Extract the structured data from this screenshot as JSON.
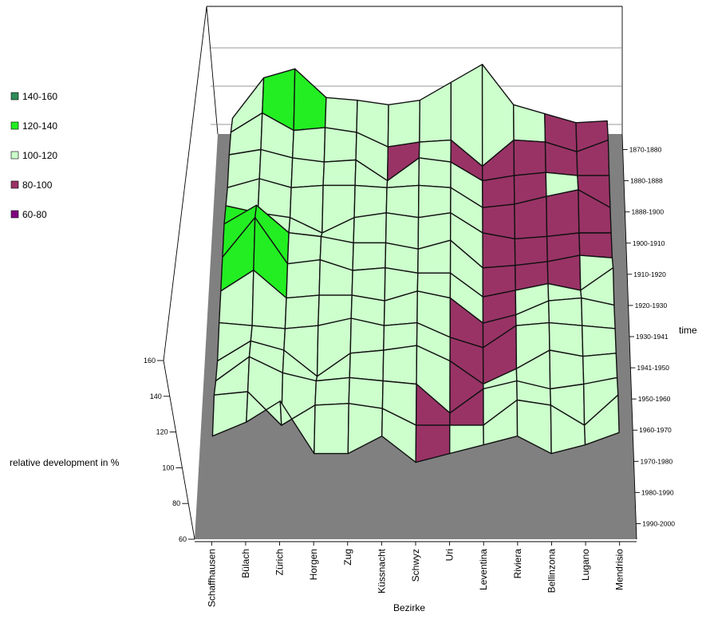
{
  "chart_data": {
    "type": "surface",
    "zlabel": "relative development in %",
    "xlabel": "Bezirke",
    "ylabel": "time",
    "zlim": [
      60,
      160
    ],
    "z_ticks": [
      "60",
      "80",
      "100",
      "120",
      "140",
      "160"
    ],
    "legend": {
      "position": "top-left",
      "entries": [
        {
          "label": "140-160",
          "color": "#2e8b57"
        },
        {
          "label": "120-140",
          "color": "#22ee22"
        },
        {
          "label": "100-120",
          "color": "#ccffcc"
        },
        {
          "label": "80-100",
          "color": "#993366"
        },
        {
          "label": "60-80",
          "color": "#800080"
        }
      ]
    },
    "districts": [
      "Schaffhausen",
      "Bülach",
      "Zürich",
      "Horgen",
      "Zug",
      "Küssnacht",
      "Schwyz",
      "Uri",
      "Leventina",
      "Riviera",
      "Bellinzona",
      "Lugano",
      "Mendrisio"
    ],
    "periods": [
      "1990-2000",
      "1980-1990",
      "1970-1980",
      "1960-1970",
      "1950-1960",
      "1941-1950",
      "1930-1941",
      "1920-1930",
      "1910-1920",
      "1900-1910",
      "1888-1900",
      "1880-1888",
      "1870-1880"
    ],
    "values": [
      [
        110,
        118,
        130,
        100,
        100,
        110,
        95,
        100,
        105,
        110,
        100,
        105,
        112
      ],
      [
        118,
        120,
        100,
        112,
        113,
        110,
        100,
        100,
        100,
        115,
        112,
        100,
        118
      ],
      [
        110,
        125,
        115,
        110,
        112,
        110,
        108,
        90,
        105,
        110,
        105,
        108,
        112
      ],
      [
        105,
        118,
        112,
        95,
        110,
        112,
        115,
        105,
        90,
        100,
        112,
        108,
        110
      ],
      [
        112,
        110,
        108,
        110,
        115,
        110,
        112,
        102,
        95,
        110,
        112,
        110,
        108
      ],
      [
        115,
        130,
        110,
        112,
        112,
        108,
        115,
        110,
        92,
        98,
        108,
        110,
        105
      ],
      [
        120,
        150,
        115,
        118,
        110,
        112,
        108,
        108,
        90,
        95,
        100,
        95,
        112
      ],
      [
        125,
        140,
        118,
        115,
        110,
        110,
        105,
        112,
        90,
        92,
        95,
        100,
        98
      ],
      [
        118,
        112,
        108,
        95,
        108,
        112,
        108,
        112,
        95,
        90,
        92,
        95,
        95
      ],
      [
        110,
        118,
        110,
        112,
        112,
        110,
        112,
        110,
        92,
        95,
        102,
        108,
        92
      ],
      [
        115,
        120,
        112,
        108,
        110,
        90,
        112,
        108,
        90,
        95,
        98,
        95,
        95
      ],
      [
        110,
        130,
        112,
        115,
        110,
        95,
        100,
        102,
        75,
        102,
        100,
        90,
        102
      ],
      [
        95,
        140,
        150,
        118,
        115,
        110,
        115,
        135,
        155,
        110,
        100,
        90,
        92
      ]
    ]
  }
}
